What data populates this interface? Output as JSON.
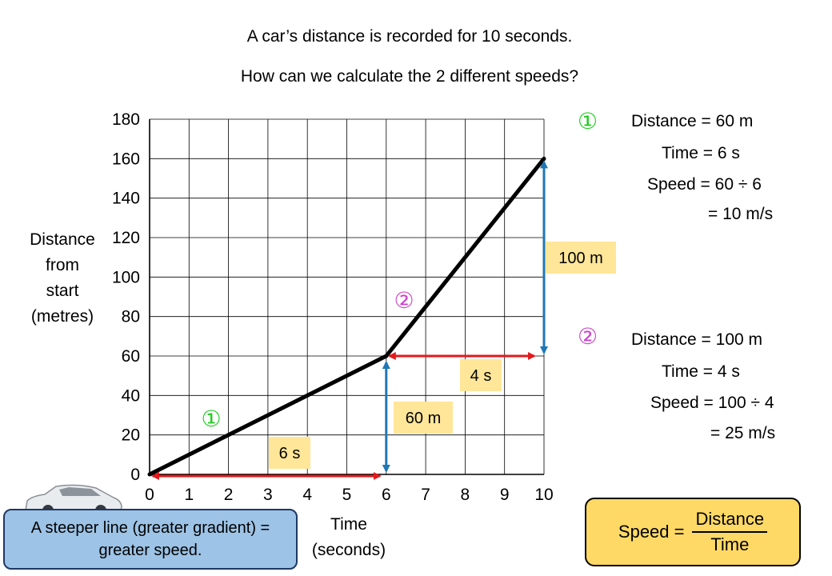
{
  "heading": {
    "line1": "A car’s distance is recorded for 10 seconds.",
    "line2": "How can we calculate the 2 different speeds?"
  },
  "chart_data": {
    "type": "line",
    "x": [
      0,
      6,
      10
    ],
    "y": [
      0,
      60,
      160
    ],
    "xlabel": "Time (seconds)",
    "ylabel": "Distance from start (metres)",
    "xlim": [
      0,
      10
    ],
    "ylim": [
      0,
      180
    ],
    "xticks": [
      "0",
      "1",
      "2",
      "3",
      "4",
      "5",
      "6",
      "7",
      "8",
      "9",
      "10"
    ],
    "yticks": [
      "0",
      "20",
      "40",
      "60",
      "80",
      "100",
      "120",
      "140",
      "160",
      "180"
    ],
    "grid": true,
    "line_color": "#000000",
    "annotations": {
      "seg1_time_label": "6 s",
      "seg1_dist_label": "60 m",
      "seg2_time_label": "4 s",
      "seg2_dist_label": "100 m",
      "seg1_marker": "①",
      "seg2_marker": "②"
    },
    "colors": {
      "time_arrow": "#e31a1c",
      "distance_arrow": "#1f77b4",
      "label_bg": "#ffe699",
      "marker1": "#22cc22",
      "marker2": "#cc44cc"
    }
  },
  "ylabel_lines": [
    "Distance",
    "from",
    "start",
    "(metres)"
  ],
  "xlabel_lines": [
    "Time",
    "(seconds)"
  ],
  "calc1": {
    "marker": "①",
    "distance": "Distance = 60 m",
    "time": "Time = 6 s",
    "speed": "Speed = 60 ÷ 6",
    "result": "= 10 m/s"
  },
  "calc2": {
    "marker": "②",
    "distance": "Distance = 100 m",
    "time": "Time = 4 s",
    "speed": "Speed = 100 ÷ 4",
    "result": "= 25 m/s"
  },
  "note": "A steeper line (greater gradient) = greater speed.",
  "formula": {
    "lhs": "Speed =",
    "numerator": "Distance",
    "denominator": "Time"
  },
  "car_image": "car-icon"
}
